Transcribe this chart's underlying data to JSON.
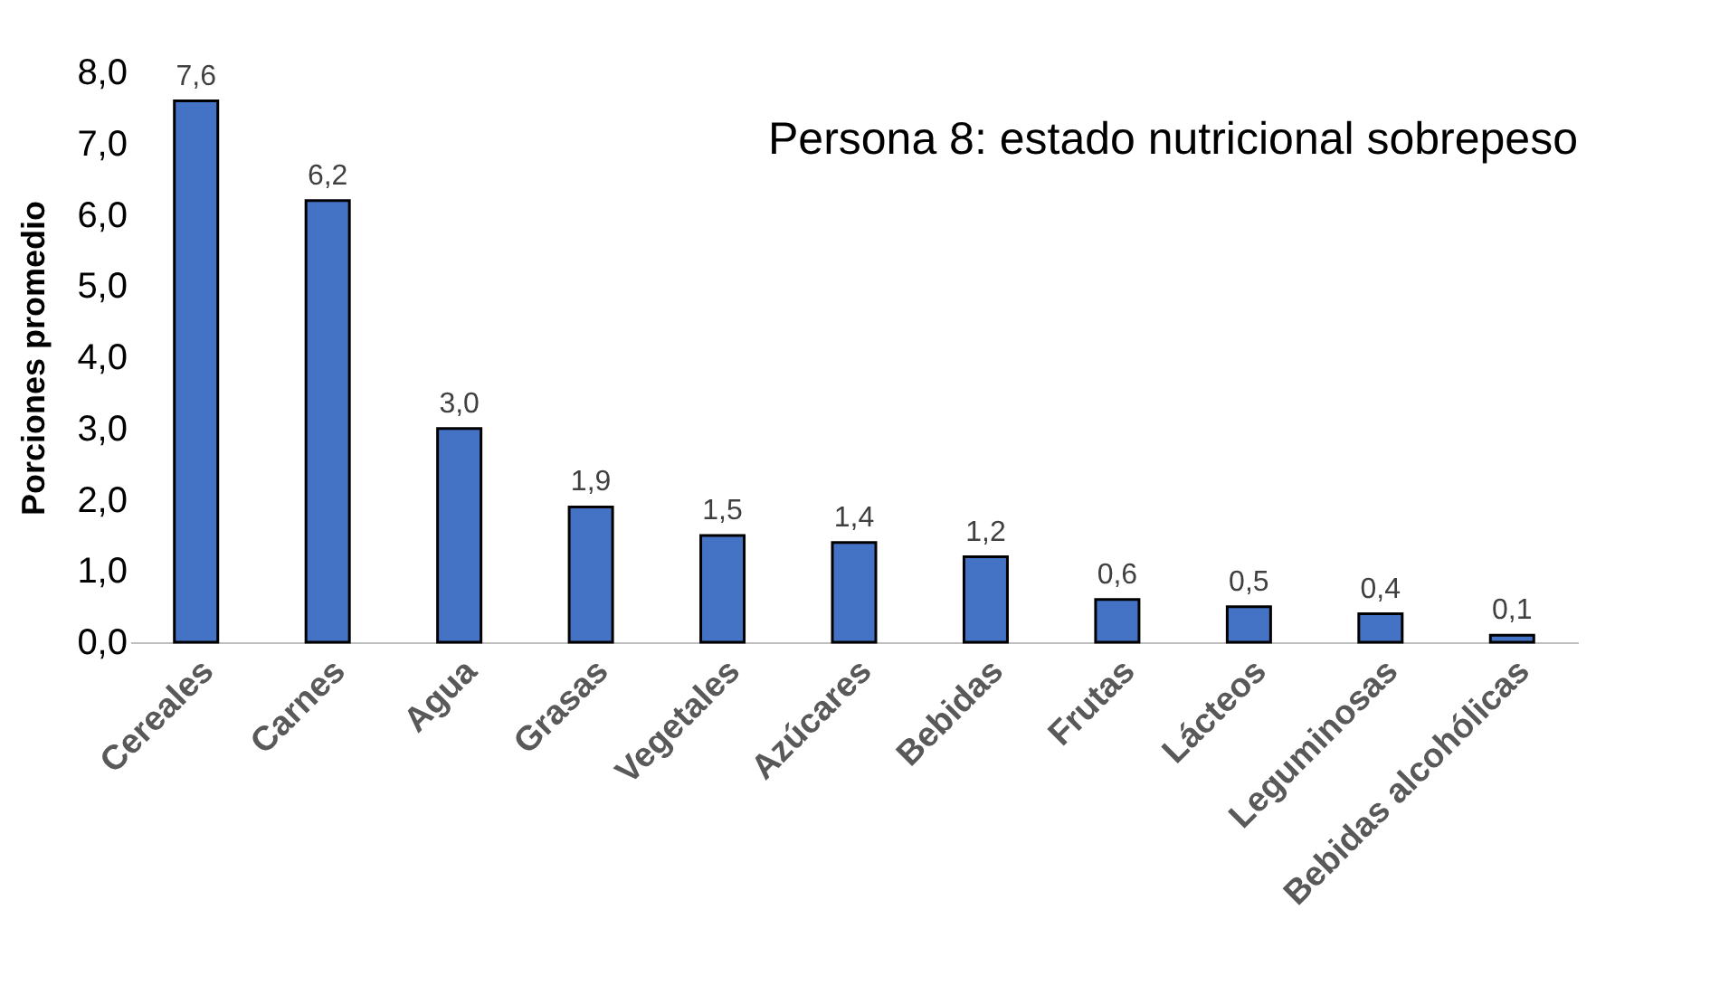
{
  "chart_data": {
    "type": "bar",
    "title": "Persona 8: estado nutricional sobrepeso",
    "ylabel": "Porciones promedio",
    "categories": [
      "Cereales",
      "Carnes",
      "Agua",
      "Grasas",
      "Vegetales",
      "Azúcares",
      "Bebidas",
      "Frutas",
      "Lácteos",
      "Leguminosas",
      "Bebidas alcohólicas"
    ],
    "values": [
      7.6,
      6.2,
      3.0,
      1.9,
      1.5,
      1.4,
      1.2,
      0.6,
      0.5,
      0.4,
      0.1
    ],
    "value_labels": [
      "7,6",
      "6,2",
      "3,0",
      "1,9",
      "1,5",
      "1,4",
      "1,2",
      "0,6",
      "0,5",
      "0,4",
      "0,1"
    ],
    "color": "#4472c4",
    "ylim": [
      0,
      8
    ],
    "grid": false,
    "yticks": [
      {
        "value": 0,
        "label": "0,0"
      },
      {
        "value": 1,
        "label": "1,0"
      },
      {
        "value": 2,
        "label": "2,0"
      },
      {
        "value": 3,
        "label": "3,0"
      },
      {
        "value": 4,
        "label": "4,0"
      },
      {
        "value": 5,
        "label": "5,0"
      },
      {
        "value": 6,
        "label": "6,0"
      },
      {
        "value": 7,
        "label": "7,0"
      },
      {
        "value": 8,
        "label": "8,0"
      }
    ]
  }
}
